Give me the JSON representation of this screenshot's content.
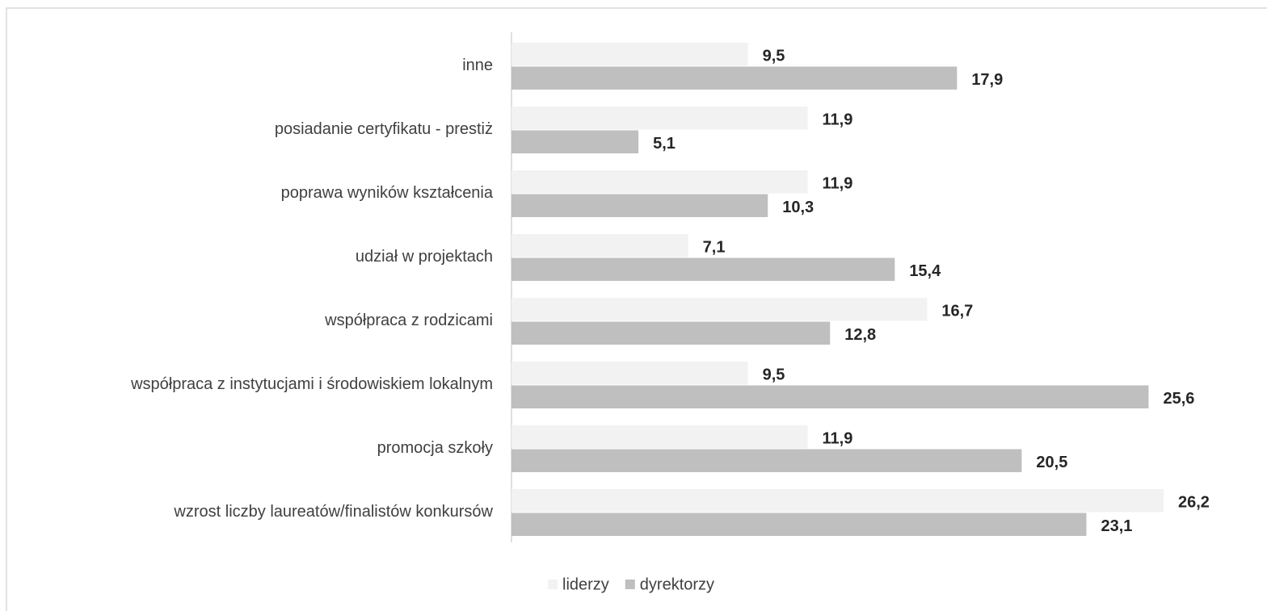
{
  "chart_data": {
    "type": "hbar",
    "categories": [
      "inne",
      "posiadanie certyfikatu - prestiż",
      "poprawa wyników kształcenia",
      "udział w projektach",
      "współpraca z rodzicami",
      "współpraca z instytucjami i środowiskiem lokalnym",
      "promocja szkoły",
      "wzrost liczby laureatów/finalistów konkursów"
    ],
    "series": [
      {
        "name": "liderzy",
        "color": "#f2f2f2",
        "values": [
          9.5,
          11.9,
          11.9,
          7.1,
          16.7,
          9.5,
          11.9,
          26.2
        ],
        "value_labels": [
          "9,5",
          "11,9",
          "11,9",
          "7,1",
          "16,7",
          "9,5",
          "11,9",
          "26,2"
        ]
      },
      {
        "name": "dyrektorzy",
        "color": "#bfbfbf",
        "values": [
          17.9,
          5.1,
          10.3,
          15.4,
          12.8,
          25.6,
          20.5,
          23.1
        ],
        "value_labels": [
          "17,9",
          "5,1",
          "10,3",
          "15,4",
          "12,8",
          "25,6",
          "20,5",
          "23,1"
        ]
      }
    ]
  }
}
